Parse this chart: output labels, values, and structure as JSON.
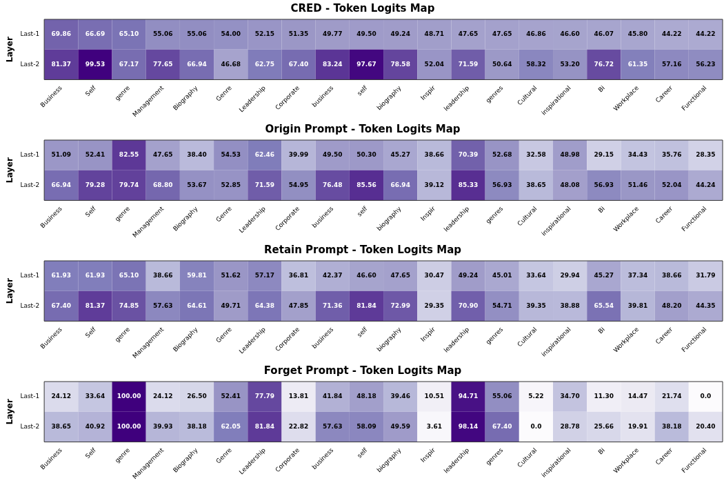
{
  "chart_data": [
    {
      "type": "heatmap",
      "title": "CRED - Token Logits Map",
      "ylabel": "Layer",
      "grid": false,
      "legend": false,
      "data_labels": true,
      "categories": [
        "Business",
        "Self",
        "genre",
        "Management",
        "Biography",
        "Genre",
        "Leadership",
        "Corporate",
        "business",
        "self",
        "biography",
        "Inspir",
        "leadership",
        "genres",
        "Cultural",
        "inspirational",
        "Bi",
        "Workplace",
        "Career",
        "Functional"
      ],
      "y_categories": [
        "Last-1",
        "Last-2"
      ],
      "cells": [
        [
          69.86,
          66.69,
          65.1,
          55.06,
          55.06,
          54.0,
          52.15,
          51.35,
          49.77,
          49.5,
          49.24,
          48.71,
          47.65,
          47.65,
          46.86,
          46.6,
          46.07,
          45.8,
          44.22,
          44.22
        ],
        [
          81.37,
          99.53,
          67.17,
          77.65,
          66.94,
          46.68,
          62.75,
          67.4,
          83.24,
          97.67,
          78.58,
          52.04,
          71.59,
          50.64,
          58.32,
          53.2,
          76.72,
          61.35,
          57.16,
          56.23
        ]
      ],
      "cell_labels": [
        [
          "69.86",
          "66.69",
          "65.10",
          "55.06",
          "55.06",
          "54.00",
          "52.15",
          "51.35",
          "49.77",
          "49.50",
          "49.24",
          "48.71",
          "47.65",
          "47.65",
          "46.86",
          "46.60",
          "46.07",
          "45.80",
          "44.22",
          "44.22"
        ],
        [
          "81.37",
          "99.53",
          "67.17",
          "77.65",
          "66.94",
          "46.68",
          "62.75",
          "67.40",
          "83.24",
          "97.67",
          "78.58",
          "52.04",
          "71.59",
          "50.64",
          "58.32",
          "53.20",
          "76.72",
          "61.35",
          "57.16",
          "56.23"
        ]
      ]
    },
    {
      "type": "heatmap",
      "title": "Origin Prompt - Token Logits Map",
      "ylabel": "Layer",
      "grid": false,
      "legend": false,
      "data_labels": true,
      "categories": [
        "Business",
        "Self",
        "genre",
        "Management",
        "Biography",
        "Genre",
        "Leadership",
        "Corporate",
        "business",
        "self",
        "biography",
        "Inspir",
        "leadership",
        "genres",
        "Cultural",
        "inspirational",
        "Bi",
        "Workplace",
        "Career",
        "Functional"
      ],
      "y_categories": [
        "Last-1",
        "Last-2"
      ],
      "cells": [
        [
          51.09,
          52.41,
          82.55,
          47.65,
          38.4,
          54.53,
          62.46,
          39.99,
          49.5,
          50.3,
          45.27,
          38.66,
          70.39,
          52.68,
          32.58,
          48.98,
          29.15,
          34.43,
          35.76,
          28.35
        ],
        [
          66.94,
          79.28,
          79.74,
          68.8,
          53.67,
          52.85,
          71.59,
          54.95,
          76.48,
          85.56,
          66.94,
          39.12,
          85.33,
          56.93,
          38.65,
          48.08,
          56.93,
          51.46,
          52.04,
          44.24
        ]
      ],
      "cell_labels": [
        [
          "51.09",
          "52.41",
          "82.55",
          "47.65",
          "38.40",
          "54.53",
          "62.46",
          "39.99",
          "49.50",
          "50.30",
          "45.27",
          "38.66",
          "70.39",
          "52.68",
          "32.58",
          "48.98",
          "29.15",
          "34.43",
          "35.76",
          "28.35"
        ],
        [
          "66.94",
          "79.28",
          "79.74",
          "68.80",
          "53.67",
          "52.85",
          "71.59",
          "54.95",
          "76.48",
          "85.56",
          "66.94",
          "39.12",
          "85.33",
          "56.93",
          "38.65",
          "48.08",
          "56.93",
          "51.46",
          "52.04",
          "44.24"
        ]
      ]
    },
    {
      "type": "heatmap",
      "title": "Retain Prompt - Token Logits Map",
      "ylabel": "Layer",
      "grid": false,
      "legend": false,
      "data_labels": true,
      "categories": [
        "Business",
        "Self",
        "genre",
        "Management",
        "Biography",
        "Genre",
        "Leadership",
        "Corporate",
        "business",
        "self",
        "biography",
        "Inspir",
        "leadership",
        "genres",
        "Cultural",
        "inspirational",
        "Bi",
        "Workplace",
        "Career",
        "Functional"
      ],
      "y_categories": [
        "Last-1",
        "Last-2"
      ],
      "cells": [
        [
          61.93,
          61.93,
          65.1,
          38.66,
          59.81,
          51.62,
          57.17,
          36.81,
          42.37,
          46.6,
          47.65,
          30.47,
          49.24,
          45.01,
          33.64,
          29.94,
          45.27,
          37.34,
          38.66,
          31.79
        ],
        [
          67.4,
          81.37,
          74.85,
          57.63,
          64.61,
          49.71,
          64.38,
          47.85,
          71.36,
          81.84,
          72.99,
          29.35,
          70.9,
          54.71,
          39.35,
          38.88,
          65.54,
          39.81,
          48.2,
          44.35
        ]
      ],
      "cell_labels": [
        [
          "61.93",
          "61.93",
          "65.10",
          "38.66",
          "59.81",
          "51.62",
          "57.17",
          "36.81",
          "42.37",
          "46.60",
          "47.65",
          "30.47",
          "49.24",
          "45.01",
          "33.64",
          "29.94",
          "45.27",
          "37.34",
          "38.66",
          "31.79"
        ],
        [
          "67.40",
          "81.37",
          "74.85",
          "57.63",
          "64.61",
          "49.71",
          "64.38",
          "47.85",
          "71.36",
          "81.84",
          "72.99",
          "29.35",
          "70.90",
          "54.71",
          "39.35",
          "38.88",
          "65.54",
          "39.81",
          "48.20",
          "44.35"
        ]
      ]
    },
    {
      "type": "heatmap",
      "title": "Forget Prompt - Token Logits Map",
      "ylabel": "Layer",
      "grid": false,
      "legend": false,
      "data_labels": true,
      "categories": [
        "Business",
        "Self",
        "genre",
        "Management",
        "Biography",
        "Genre",
        "Leadership",
        "Corporate",
        "business",
        "self",
        "biography",
        "Inspir",
        "leadership",
        "genres",
        "Cultural",
        "inspirational",
        "Bi",
        "Workplace",
        "Career",
        "Functional"
      ],
      "y_categories": [
        "Last-1",
        "Last-2"
      ],
      "cells": [
        [
          24.12,
          33.64,
          100.0,
          24.12,
          26.5,
          52.41,
          77.79,
          13.81,
          41.84,
          48.18,
          39.46,
          10.51,
          94.71,
          55.06,
          5.22,
          34.7,
          11.3,
          14.47,
          21.74,
          0.0
        ],
        [
          38.65,
          40.92,
          100.0,
          39.93,
          38.18,
          62.05,
          81.84,
          22.82,
          57.63,
          58.09,
          49.59,
          3.61,
          98.14,
          67.4,
          0.0,
          28.78,
          25.66,
          19.91,
          38.18,
          20.4
        ]
      ],
      "cell_labels": [
        [
          "24.12",
          "33.64",
          "100.00",
          "24.12",
          "26.50",
          "52.41",
          "77.79",
          "13.81",
          "41.84",
          "48.18",
          "39.46",
          "10.51",
          "94.71",
          "55.06",
          "5.22",
          "34.70",
          "11.30",
          "14.47",
          "21.74",
          "0.0"
        ],
        [
          "38.65",
          "40.92",
          "100.00",
          "39.93",
          "38.18",
          "62.05",
          "81.84",
          "22.82",
          "57.63",
          "58.09",
          "49.59",
          "3.61",
          "98.14",
          "67.40",
          "0.0",
          "28.78",
          "25.66",
          "19.91",
          "38.18",
          "20.40"
        ]
      ]
    }
  ]
}
